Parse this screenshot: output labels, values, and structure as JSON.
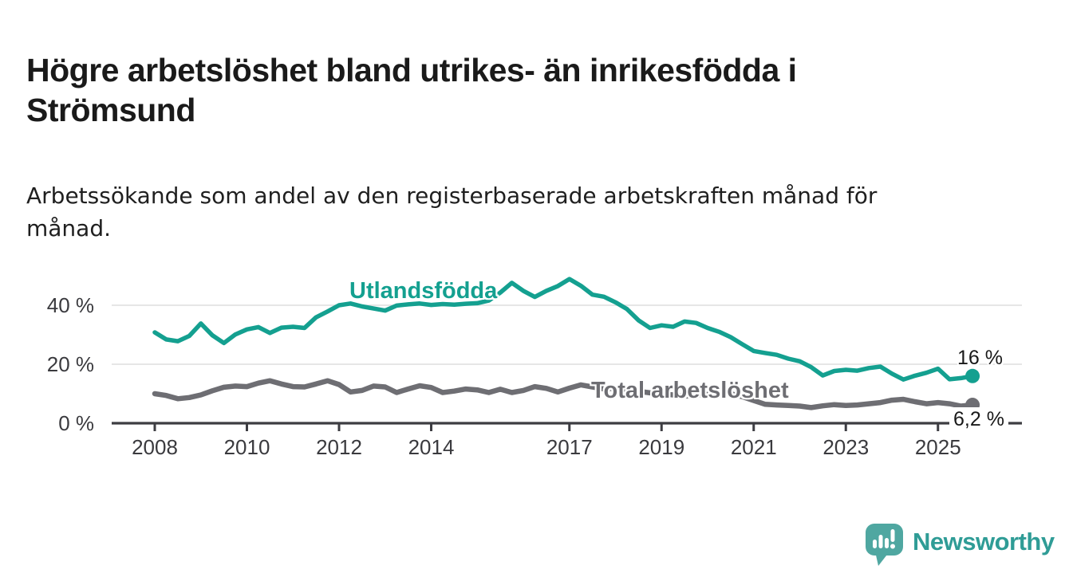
{
  "title": "Högre arbetslöshet bland utrikes- än inrikesfödda i Strömsund",
  "subtitle": "Arbetssökande som andel av den registerbaserade arbetskraften månad för månad.",
  "branding": {
    "logo_text": "Newsworthy",
    "logo_icon": "bar-chart-speech-bubble-icon",
    "brand_color": "#2F9C96",
    "bubble_color": "#4FA7A1"
  },
  "chart_data": {
    "type": "line",
    "grid": "horizontal",
    "x_axis_unit": "year (monthly observations)",
    "y_axis_unit": "percent",
    "y_range": [
      0,
      51
    ],
    "x_range": [
      2007.1,
      2026.7
    ],
    "x_ticks": [
      2008,
      2010,
      2012,
      2014,
      2017,
      2019,
      2021,
      2023,
      2025
    ],
    "y_ticks": [
      {
        "value": 40,
        "label": "40 %"
      },
      {
        "value": 20,
        "label": "20 %"
      },
      {
        "value": 0,
        "label": "0 %"
      }
    ],
    "x_start": 2008.0,
    "x_step": 0.25,
    "series": [
      {
        "id": "utlandsfodda",
        "name": "Utlandsfödda",
        "color": "#14A090",
        "line_width": 5.5,
        "end_label": "16 %",
        "end_value": 16,
        "values": [
          30.8,
          28.4,
          27.8,
          29.6,
          33.8,
          29.8,
          27.2,
          30.1,
          31.8,
          32.6,
          30.6,
          32.4,
          32.7,
          32.3,
          35.9,
          37.9,
          40.0,
          40.6,
          39.6,
          38.9,
          38.2,
          39.9,
          40.3,
          40.6,
          40.1,
          40.4,
          40.2,
          40.5,
          40.7,
          41.6,
          44.3,
          47.6,
          44.9,
          42.8,
          44.9,
          46.5,
          48.9,
          46.6,
          43.6,
          42.9,
          41.0,
          38.7,
          34.9,
          32.3,
          33.2,
          32.7,
          34.5,
          34.0,
          32.3,
          31.0,
          29.2,
          26.8,
          24.5,
          23.8,
          23.2,
          21.9,
          21.0,
          19.0,
          16.2,
          17.7,
          18.1,
          17.8,
          18.7,
          19.2,
          16.8,
          14.8,
          16.1,
          17.1,
          18.5,
          14.9,
          15.3,
          16.0
        ]
      },
      {
        "id": "total",
        "name": "Total arbetslöshet",
        "color": "#6E6E73",
        "line_width": 6.5,
        "end_label": "6,2 %",
        "end_value": 6.2,
        "values": [
          10.0,
          9.4,
          8.3,
          8.7,
          9.6,
          11.0,
          12.2,
          12.6,
          12.4,
          13.6,
          14.4,
          13.3,
          12.4,
          12.3,
          13.3,
          14.4,
          13.1,
          10.6,
          11.1,
          12.6,
          12.3,
          10.4,
          11.6,
          12.7,
          12.1,
          10.4,
          10.9,
          11.6,
          11.3,
          10.4,
          11.5,
          10.4,
          11.1,
          12.4,
          11.8,
          10.6,
          11.9,
          13.0,
          12.3,
          11.6,
          11.9,
          11.3,
          10.8,
          10.3,
          10.0,
          9.6,
          9.2,
          9.4,
          9.8,
          10.4,
          10.0,
          9.0,
          7.7,
          6.4,
          6.2,
          6.0,
          5.8,
          5.3,
          5.9,
          6.3,
          6.0,
          6.2,
          6.6,
          7.0,
          7.8,
          8.1,
          7.3,
          6.6,
          7.0,
          6.6,
          5.8,
          6.2
        ]
      }
    ]
  }
}
